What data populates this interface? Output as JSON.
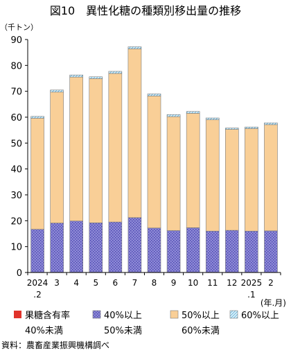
{
  "chart_data": {
    "type": "bar",
    "stacked": true,
    "title": "図10　異性化糖の種類別移出量の推移",
    "unit_label": "（千トン）",
    "x_unit_label": "(年.月)",
    "source": "資料：農畜産業振興機構調べ",
    "categories": [
      {
        "line1": "2024",
        "line2": ".2"
      },
      {
        "line1": "3",
        "line2": ""
      },
      {
        "line1": "4",
        "line2": ""
      },
      {
        "line1": "5",
        "line2": ""
      },
      {
        "line1": "6",
        "line2": ""
      },
      {
        "line1": "7",
        "line2": ""
      },
      {
        "line1": "8",
        "line2": ""
      },
      {
        "line1": "9",
        "line2": ""
      },
      {
        "line1": "10",
        "line2": ""
      },
      {
        "line1": "11",
        "line2": ""
      },
      {
        "line1": "12",
        "line2": ""
      },
      {
        "line1": "2025",
        "line2": ".1"
      },
      {
        "line1": "2",
        "line2": ""
      }
    ],
    "ylim": [
      0,
      90
    ],
    "yticks": [
      0,
      10,
      20,
      30,
      40,
      50,
      60,
      70,
      80,
      90
    ],
    "grid": false,
    "legend_position": "bottom",
    "series": [
      {
        "name_line1": "果糖含有率",
        "name_line2": "40%未満",
        "color": "#e0332b",
        "values": [
          0.1,
          0.1,
          0.1,
          0.1,
          0.1,
          0.1,
          0.1,
          0.1,
          0.1,
          0.1,
          0.1,
          0.1,
          0.1
        ]
      },
      {
        "name_line1": "40%以上",
        "name_line2": "50%未満",
        "color": "#8e8ad6",
        "values": [
          16.6,
          19.0,
          19.8,
          19.1,
          19.4,
          21.1,
          17.1,
          16.1,
          17.2,
          15.9,
          16.2,
          15.9,
          16.0
        ]
      },
      {
        "name_line1": "50%以上",
        "name_line2": "60%未満",
        "color": "#f9cf97",
        "values": [
          42.9,
          50.6,
          55.6,
          55.7,
          57.4,
          65.2,
          51.0,
          44.0,
          44.2,
          43.0,
          39.0,
          39.6,
          41.0
        ]
      },
      {
        "name_line1": "60%以上",
        "name_line2": "",
        "color": "#a9d8ee",
        "values": [
          0.7,
          0.8,
          0.8,
          0.7,
          0.8,
          0.8,
          0.8,
          0.8,
          0.7,
          0.7,
          0.5,
          0.6,
          0.7
        ]
      }
    ]
  }
}
